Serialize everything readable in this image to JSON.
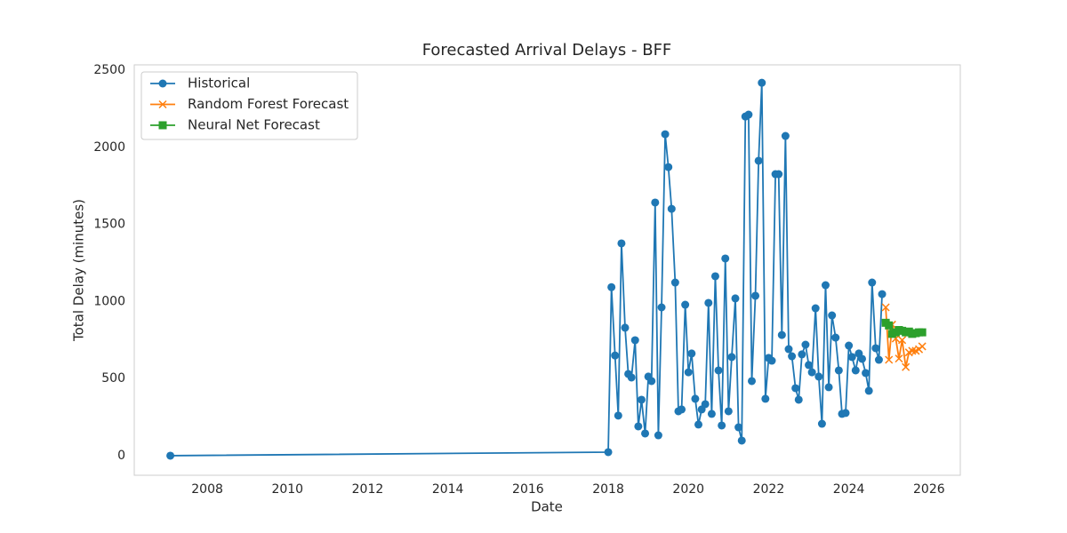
{
  "chart_data": {
    "type": "line",
    "title": "Forecasted Arrival Delays - BFF",
    "x_label": "Date",
    "y_label": "Total Delay (minutes)",
    "xlim": [
      2006.18,
      2026.78
    ],
    "ylim": [
      -127,
      2535
    ],
    "xticks": [
      2008,
      2010,
      2012,
      2014,
      2016,
      2018,
      2020,
      2022,
      2024,
      2026
    ],
    "yticks": [
      0,
      500,
      1000,
      1500,
      2000,
      2500
    ],
    "grid": false,
    "legend": "upper left",
    "series": [
      {
        "name": "Historical",
        "color": "#1f77b4",
        "marker": "circle",
        "x": [
          2007.08,
          2018.0,
          2018.08,
          2018.17,
          2018.25,
          2018.33,
          2018.42,
          2018.5,
          2018.58,
          2018.67,
          2018.75,
          2018.83,
          2018.92,
          2019.0,
          2019.08,
          2019.17,
          2019.25,
          2019.33,
          2019.42,
          2019.5,
          2019.58,
          2019.67,
          2019.75,
          2019.83,
          2019.92,
          2020.0,
          2020.08,
          2020.17,
          2020.25,
          2020.33,
          2020.42,
          2020.5,
          2020.58,
          2020.67,
          2020.75,
          2020.83,
          2020.92,
          2021.0,
          2021.08,
          2021.17,
          2021.25,
          2021.33,
          2021.42,
          2021.5,
          2021.58,
          2021.67,
          2021.75,
          2021.83,
          2021.92,
          2022.0,
          2022.08,
          2022.17,
          2022.25,
          2022.33,
          2022.42,
          2022.5,
          2022.58,
          2022.67,
          2022.75,
          2022.83,
          2022.92,
          2023.0,
          2023.08,
          2023.17,
          2023.25,
          2023.33,
          2023.42,
          2023.5,
          2023.58,
          2023.67,
          2023.75,
          2023.83,
          2023.92,
          2024.0,
          2024.08,
          2024.17,
          2024.25,
          2024.33,
          2024.42,
          2024.5,
          2024.58,
          2024.67,
          2024.75,
          2024.83
        ],
        "values": [
          0,
          23,
          1093,
          650,
          260,
          1377,
          830,
          530,
          507,
          749,
          190,
          363,
          144,
          513,
          484,
          1642,
          132,
          962,
          2085,
          1872,
          1601,
          1123,
          288,
          300,
          979,
          541,
          663,
          369,
          202,
          300,
          334,
          991,
          271,
          1164,
          553,
          196,
          1279,
          288,
          640,
          1020,
          184,
          98,
          2200,
          2212,
          484,
          1037,
          1913,
          2419,
          369,
          634,
          616,
          1826,
          1826,
          783,
          2074,
          691,
          645,
          438,
          363,
          657,
          720,
          588,
          541,
          956,
          513,
          207,
          1106,
          444,
          910,
          766,
          553,
          271,
          277,
          714,
          640,
          553,
          663,
          628,
          536,
          421,
          1123,
          697,
          622,
          1048
        ]
      },
      {
        "name": "Random Forest Forecast",
        "color": "#ff7f0e",
        "marker": "x",
        "x": [
          2024.92,
          2025.0,
          2025.08,
          2025.17,
          2025.25,
          2025.33,
          2025.42,
          2025.5,
          2025.58,
          2025.67,
          2025.75,
          2025.83
        ],
        "values": [
          962,
          622,
          850,
          760,
          630,
          750,
          575,
          670,
          680,
          680,
          690,
          709
        ]
      },
      {
        "name": "Neural Net Forecast",
        "color": "#2ca02c",
        "marker": "square",
        "x": [
          2024.92,
          2025.0,
          2025.08,
          2025.17,
          2025.25,
          2025.33,
          2025.42,
          2025.5,
          2025.58,
          2025.67,
          2025.75,
          2025.83
        ],
        "values": [
          862,
          845,
          790,
          800,
          815,
          810,
          800,
          805,
          790,
          795,
          800,
          800
        ]
      }
    ]
  }
}
